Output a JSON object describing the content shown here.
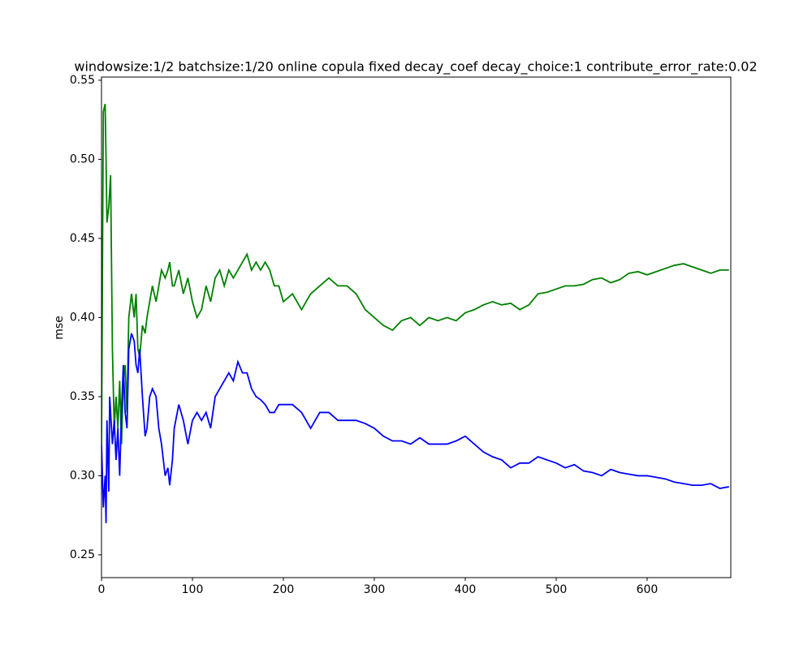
{
  "chart_data": {
    "type": "line",
    "title": "windowsize:1/2  batchsize:1/20 online copula  fixed decay_coef  decay_choice:1  contribute_error_rate:0.02",
    "y_label": "mse",
    "x": [
      0,
      2,
      4,
      5,
      6,
      8,
      9,
      10,
      12,
      14,
      16,
      18,
      20,
      22,
      24,
      26,
      28,
      30,
      33,
      36,
      38,
      40,
      42,
      45,
      48,
      50,
      53,
      56,
      60,
      63,
      66,
      70,
      73,
      75,
      78,
      80,
      85,
      90,
      95,
      100,
      105,
      110,
      115,
      120,
      125,
      130,
      135,
      140,
      145,
      150,
      155,
      160,
      165,
      170,
      175,
      180,
      185,
      190,
      195,
      200,
      210,
      220,
      230,
      240,
      250,
      260,
      270,
      280,
      290,
      300,
      310,
      320,
      330,
      340,
      350,
      360,
      370,
      380,
      390,
      400,
      410,
      420,
      430,
      440,
      450,
      460,
      470,
      480,
      490,
      500,
      510,
      520,
      530,
      540,
      550,
      560,
      570,
      580,
      590,
      600,
      610,
      620,
      630,
      640,
      650,
      660,
      670,
      680,
      690
    ],
    "series": [
      {
        "color": "#008000",
        "values": [
          0.32,
          0.53,
          0.535,
          0.5,
          0.46,
          0.47,
          0.48,
          0.49,
          0.38,
          0.33,
          0.35,
          0.33,
          0.36,
          0.32,
          0.36,
          0.37,
          0.34,
          0.4,
          0.415,
          0.4,
          0.415,
          0.38,
          0.375,
          0.395,
          0.39,
          0.4,
          0.41,
          0.42,
          0.41,
          0.42,
          0.43,
          0.425,
          0.43,
          0.435,
          0.42,
          0.42,
          0.43,
          0.415,
          0.425,
          0.41,
          0.4,
          0.405,
          0.42,
          0.41,
          0.425,
          0.43,
          0.42,
          0.43,
          0.425,
          0.43,
          0.435,
          0.44,
          0.43,
          0.435,
          0.43,
          0.435,
          0.43,
          0.42,
          0.42,
          0.41,
          0.415,
          0.405,
          0.415,
          0.42,
          0.425,
          0.42,
          0.42,
          0.415,
          0.405,
          0.4,
          0.395,
          0.392,
          0.398,
          0.4,
          0.395,
          0.4,
          0.398,
          0.4,
          0.398,
          0.403,
          0.405,
          0.408,
          0.41,
          0.408,
          0.409,
          0.405,
          0.408,
          0.415,
          0.416,
          0.418,
          0.42,
          0.42,
          0.421,
          0.424,
          0.425,
          0.422,
          0.424,
          0.428,
          0.429,
          0.427,
          0.429,
          0.431,
          0.433,
          0.434,
          0.432,
          0.43,
          0.428,
          0.43,
          0.43
        ]
      },
      {
        "color": "#0000ff",
        "values": [
          0.32,
          0.28,
          0.3,
          0.27,
          0.335,
          0.29,
          0.35,
          0.34,
          0.32,
          0.335,
          0.31,
          0.33,
          0.3,
          0.34,
          0.37,
          0.34,
          0.33,
          0.38,
          0.39,
          0.385,
          0.37,
          0.365,
          0.38,
          0.35,
          0.325,
          0.33,
          0.35,
          0.355,
          0.35,
          0.33,
          0.32,
          0.3,
          0.305,
          0.294,
          0.31,
          0.33,
          0.345,
          0.335,
          0.32,
          0.335,
          0.34,
          0.335,
          0.34,
          0.33,
          0.35,
          0.355,
          0.36,
          0.365,
          0.36,
          0.372,
          0.365,
          0.365,
          0.355,
          0.35,
          0.348,
          0.345,
          0.34,
          0.34,
          0.345,
          0.345,
          0.345,
          0.34,
          0.33,
          0.34,
          0.34,
          0.335,
          0.335,
          0.335,
          0.333,
          0.33,
          0.325,
          0.322,
          0.322,
          0.32,
          0.324,
          0.32,
          0.32,
          0.32,
          0.322,
          0.325,
          0.32,
          0.315,
          0.312,
          0.31,
          0.305,
          0.308,
          0.308,
          0.312,
          0.31,
          0.308,
          0.305,
          0.307,
          0.303,
          0.302,
          0.3,
          0.304,
          0.302,
          0.301,
          0.3,
          0.3,
          0.299,
          0.298,
          0.296,
          0.295,
          0.294,
          0.294,
          0.295,
          0.292,
          0.293
        ]
      }
    ],
    "xlim": [
      0,
      692
    ],
    "xticks": [
      0,
      100,
      200,
      300,
      400,
      500,
      600
    ],
    "ylim": [
      0.2356,
      0.552
    ],
    "yticks": [
      0.25,
      {
        "value": 0.3,
        "label": "0.30"
      },
      0.35,
      {
        "value": 0.4,
        "label": "0.40"
      },
      0.45,
      {
        "value": 0.5,
        "label": "0.50"
      },
      0.55
    ],
    "grid": false
  }
}
